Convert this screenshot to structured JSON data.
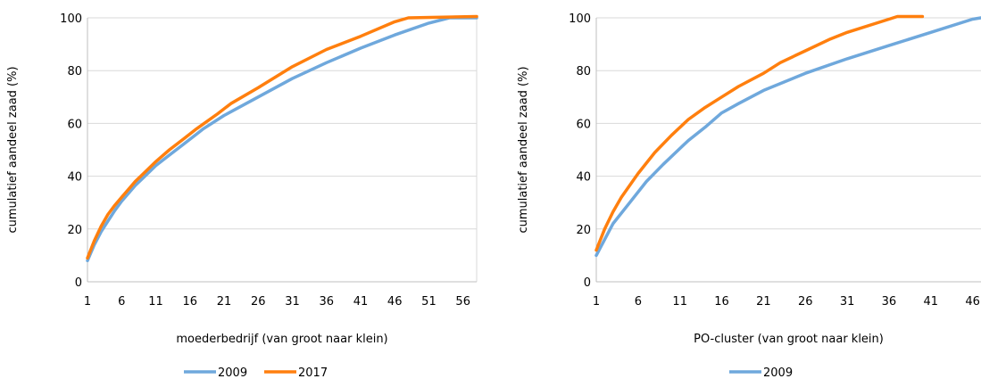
{
  "chart_data": [
    {
      "type": "line",
      "title": "",
      "xlabel": "moederbedrijf (van groot naar klein)",
      "ylabel": "cumulatief aandeel zaad (%)",
      "xlim": [
        1,
        58
      ],
      "ylim": [
        0,
        100
      ],
      "x_ticks": [
        1,
        6,
        11,
        16,
        21,
        26,
        31,
        36,
        41,
        46,
        51,
        56
      ],
      "y_ticks": [
        0,
        20,
        40,
        60,
        80,
        100
      ],
      "legend_position": "bottom",
      "series": [
        {
          "name": "2009",
          "color": "#6fa8dc",
          "points": [
            [
              1,
              8
            ],
            [
              2,
              14
            ],
            [
              3,
              19
            ],
            [
              4,
              23
            ],
            [
              5,
              27
            ],
            [
              6,
              30.5
            ],
            [
              7,
              33.5
            ],
            [
              8,
              36.5
            ],
            [
              9,
              39
            ],
            [
              10,
              41.5
            ],
            [
              11,
              44
            ],
            [
              13,
              48
            ],
            [
              15,
              52
            ],
            [
              17,
              56
            ],
            [
              18,
              58
            ],
            [
              21,
              63
            ],
            [
              26,
              70
            ],
            [
              31,
              77
            ],
            [
              36,
              83
            ],
            [
              41,
              88.5
            ],
            [
              46,
              93.5
            ],
            [
              51,
              98
            ],
            [
              54,
              100
            ],
            [
              58,
              100
            ]
          ]
        },
        {
          "name": "2017",
          "color": "#ff7f0e",
          "points": [
            [
              1,
              9
            ],
            [
              2,
              15.5
            ],
            [
              3,
              21
            ],
            [
              4,
              25.5
            ],
            [
              5,
              29
            ],
            [
              6,
              32
            ],
            [
              7,
              35
            ],
            [
              8,
              38
            ],
            [
              9,
              40.5
            ],
            [
              10,
              43
            ],
            [
              11,
              45.5
            ],
            [
              13,
              50
            ],
            [
              15,
              54
            ],
            [
              17,
              58
            ],
            [
              20,
              63.5
            ],
            [
              22,
              67.5
            ],
            [
              26,
              73.5
            ],
            [
              31,
              81.5
            ],
            [
              36,
              88
            ],
            [
              41,
              93
            ],
            [
              46,
              98.5
            ],
            [
              48,
              100
            ],
            [
              58,
              100.5
            ]
          ]
        }
      ]
    },
    {
      "type": "line",
      "title": "",
      "xlabel": "PO-cluster (van groot naar klein)",
      "ylabel": "cumulatief aandeel zaad (%)",
      "xlim": [
        1,
        47
      ],
      "ylim": [
        0,
        100
      ],
      "x_ticks": [
        1,
        6,
        11,
        16,
        21,
        26,
        31,
        36,
        41,
        46
      ],
      "y_ticks": [
        0,
        20,
        40,
        60,
        80,
        100
      ],
      "legend_position": "bottom",
      "series": [
        {
          "name": "2009",
          "color": "#6fa8dc",
          "points": [
            [
              1,
              10
            ],
            [
              2,
              16
            ],
            [
              3,
              22
            ],
            [
              5,
              30
            ],
            [
              7,
              38
            ],
            [
              9,
              44.5
            ],
            [
              11,
              50.5
            ],
            [
              12,
              53.5
            ],
            [
              14,
              58.5
            ],
            [
              16,
              64
            ],
            [
              18,
              67.5
            ],
            [
              21,
              72.5
            ],
            [
              26,
              79
            ],
            [
              31,
              84.5
            ],
            [
              36,
              89.5
            ],
            [
              41,
              94.5
            ],
            [
              46,
              99.5
            ],
            [
              47,
              100
            ]
          ]
        },
        {
          "name": "",
          "color": "#ff7f0e",
          "points": [
            [
              1,
              12
            ],
            [
              2,
              20
            ],
            [
              3,
              26.5
            ],
            [
              4,
              32
            ],
            [
              6,
              41
            ],
            [
              8,
              49
            ],
            [
              10,
              55.5
            ],
            [
              12,
              61.5
            ],
            [
              14,
              66
            ],
            [
              16,
              70
            ],
            [
              18,
              74
            ],
            [
              21,
              79
            ],
            [
              23,
              83
            ],
            [
              26,
              87.5
            ],
            [
              29,
              92
            ],
            [
              31,
              94.5
            ],
            [
              36,
              99.5
            ],
            [
              37,
              100.5
            ],
            [
              40,
              100.5
            ]
          ]
        }
      ]
    }
  ]
}
